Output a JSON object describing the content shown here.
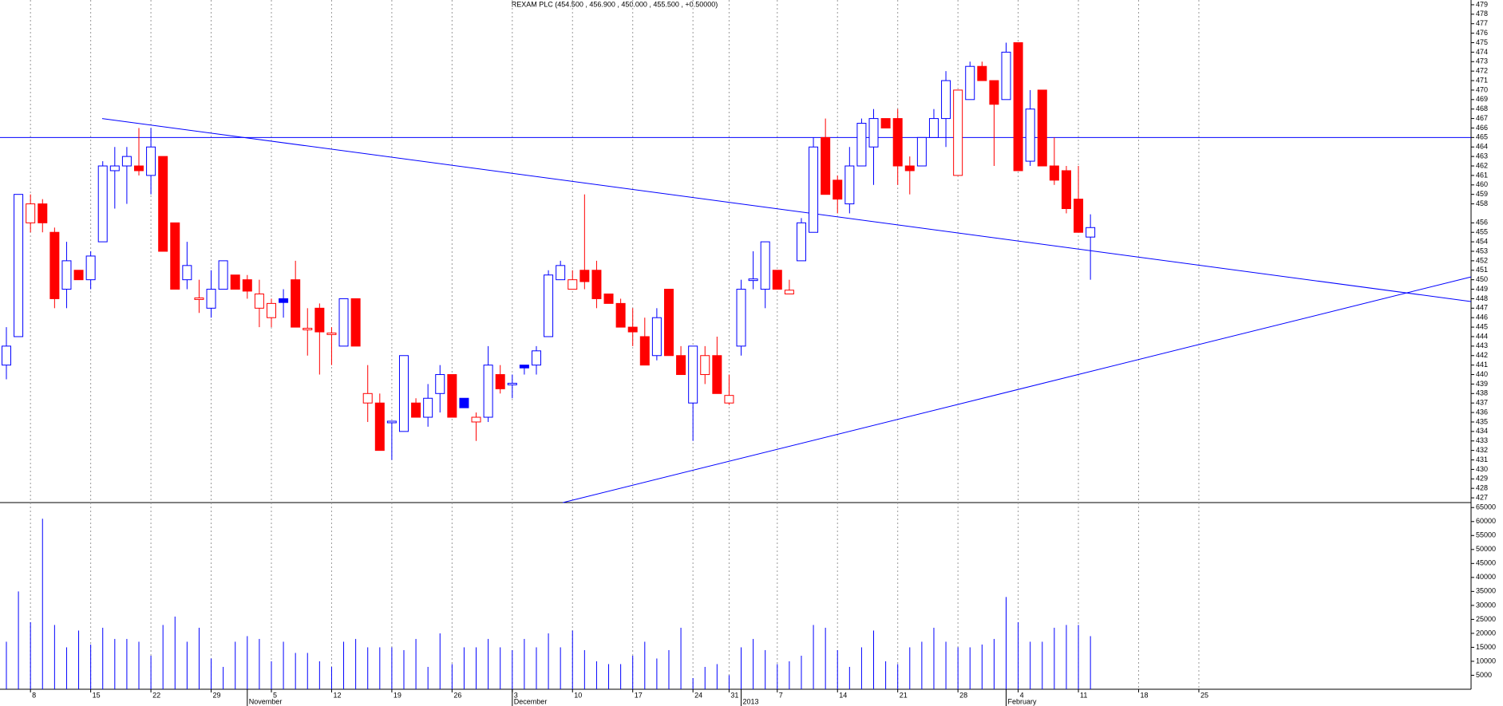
{
  "chart_data": {
    "type": "candlestick",
    "title": "REXAM PLC (454.500 , 456.900 , 450.000 , 455.500 , +0.50000)",
    "open": [
      441,
      444,
      456,
      458,
      455,
      449,
      451,
      450,
      454,
      461.5,
      462,
      462,
      461,
      463,
      456,
      450,
      448,
      447,
      449,
      450.5,
      450,
      447,
      446,
      448,
      450,
      444.8,
      447,
      444.3,
      443,
      448,
      437,
      437,
      435,
      434,
      437,
      435.5,
      438,
      440,
      437.5,
      435,
      435.5,
      440,
      439,
      441,
      441,
      444,
      450,
      449,
      451,
      451,
      448.5,
      447.5,
      445,
      444,
      442,
      449,
      442,
      437,
      440,
      442,
      437,
      443,
      450,
      449,
      451,
      448.5,
      452,
      455,
      465,
      460.5,
      458,
      462,
      464,
      467,
      467,
      462,
      462,
      465,
      467,
      461,
      469,
      472.5,
      471,
      469,
      475,
      462.5,
      470,
      462,
      461.5,
      458.5,
      454.5
    ],
    "high": [
      445,
      459,
      459,
      458.5,
      455.5,
      454,
      451,
      453,
      462.5,
      464,
      464,
      466,
      466,
      463,
      456,
      454,
      450,
      451,
      452,
      450.5,
      450.5,
      450,
      448,
      449,
      452,
      447,
      447.5,
      445,
      448,
      448,
      441,
      438,
      435,
      442,
      437.5,
      439,
      441,
      440,
      437.5,
      436,
      443,
      441,
      440,
      441,
      443,
      451,
      452,
      451,
      459,
      452,
      448.5,
      448,
      447,
      446,
      447,
      449,
      443,
      443,
      443,
      444,
      440,
      450,
      453,
      454,
      451,
      450,
      456.5,
      465,
      467,
      461,
      464,
      467,
      468,
      467,
      468,
      463,
      465,
      468,
      472,
      470,
      473,
      473,
      471,
      475,
      475,
      470,
      470,
      465,
      462,
      462,
      456.9
    ],
    "low": [
      439.5,
      444,
      455,
      455,
      447,
      447,
      450,
      449,
      454,
      457.5,
      458,
      461,
      459,
      453,
      449,
      449,
      446.5,
      446,
      449,
      449,
      448,
      445,
      445,
      446,
      445,
      442,
      440,
      441,
      443,
      443,
      435,
      432,
      431,
      434,
      435.5,
      434.5,
      436,
      435.5,
      436.5,
      433,
      435,
      438,
      437.5,
      440,
      440,
      444,
      450,
      449,
      449,
      447,
      447.5,
      445,
      443,
      441,
      441.5,
      442,
      440,
      433,
      439,
      438,
      436.8,
      442,
      449,
      447,
      449,
      448.5,
      452,
      455,
      459,
      457,
      457,
      462,
      460,
      466,
      460,
      459,
      462,
      465,
      464,
      461,
      469,
      471,
      462,
      469,
      461.5,
      462,
      462,
      460,
      457,
      455,
      450
    ],
    "close": [
      443,
      459,
      458,
      456,
      448,
      452,
      450,
      452.5,
      462,
      462,
      463,
      461.5,
      464,
      453,
      449,
      451.5,
      448,
      449,
      452,
      449,
      448.8,
      448.5,
      447.5,
      447.6,
      445,
      444.8,
      444.5,
      444.3,
      448,
      443,
      438,
      432,
      435,
      442,
      435.5,
      437.5,
      440,
      435.5,
      436.5,
      435.5,
      441,
      438.5,
      439,
      440.7,
      442.5,
      450.5,
      451.5,
      450,
      449.8,
      448,
      447.5,
      445,
      444.5,
      441,
      446,
      442,
      440,
      443,
      442,
      438,
      437.8,
      449,
      450,
      454,
      449,
      448.9,
      456,
      464,
      459,
      458.5,
      462,
      466.5,
      467,
      466,
      462,
      461.5,
      465,
      467,
      471,
      470,
      472.5,
      471,
      468.5,
      474,
      461.5,
      468,
      462,
      460.5,
      457.5,
      455,
      455.5
    ],
    "volume": [
      17000,
      35000,
      24000,
      61000,
      23000,
      15000,
      21000,
      16000,
      22000,
      18000,
      18000,
      17000,
      12000,
      23000,
      26000,
      17000,
      22000,
      11000,
      8000,
      17000,
      19000,
      18000,
      10000,
      17000,
      13000,
      13000,
      10000,
      8000,
      17000,
      18000,
      15000,
      15000,
      15000,
      14000,
      18000,
      8000,
      20000,
      9000,
      15000,
      15000,
      18000,
      15000,
      14000,
      18000,
      15000,
      20000,
      15000,
      21000,
      14000,
      10000,
      9000,
      9000,
      12000,
      17000,
      11000,
      14000,
      22000,
      4000,
      8000,
      9000,
      5000,
      15000,
      18000,
      14000,
      9000,
      10000,
      12000,
      23000,
      22000,
      14000,
      8000,
      15000,
      21000,
      10000,
      9000,
      15000,
      17000,
      22000,
      17000,
      15000,
      15000,
      16000,
      18000,
      33000,
      24000,
      17000,
      17000,
      22000,
      23000,
      23000,
      19000
    ],
    "up_color": "#0000ff",
    "down_color": "#ff0000",
    "volume_color": "#0000ff",
    "line_color": "#0000ff",
    "xlim": [
      -0.53,
      121.6
    ],
    "ylim": [
      426.5,
      479.5
    ],
    "yticks": [
      427,
      428,
      429,
      430,
      431,
      432,
      433,
      434,
      435,
      436,
      437,
      438,
      439,
      440,
      441,
      442,
      443,
      444,
      445,
      446,
      447,
      448,
      449,
      450,
      451,
      452,
      453,
      454,
      455,
      456,
      458,
      459,
      460,
      461,
      462,
      463,
      464,
      465,
      466,
      467,
      468,
      469,
      470,
      471,
      472,
      473,
      474,
      475,
      476,
      477,
      478,
      479
    ],
    "volume_ylim": [
      0,
      66500
    ],
    "volume_yticks": [
      5000,
      10000,
      15000,
      20000,
      25000,
      30000,
      35000,
      40000,
      45000,
      50000,
      55000,
      60000,
      65000
    ],
    "xticks": [
      {
        "value": 2,
        "label": "8"
      },
      {
        "value": 7,
        "label": "15"
      },
      {
        "value": 12,
        "label": "22"
      },
      {
        "value": 17,
        "label": "29"
      },
      {
        "value": 22,
        "label": "5"
      },
      {
        "value": 27,
        "label": "12"
      },
      {
        "value": 32,
        "label": "19"
      },
      {
        "value": 37,
        "label": "26"
      },
      {
        "value": 42,
        "label": "3"
      },
      {
        "value": 47,
        "label": "10"
      },
      {
        "value": 52,
        "label": "17"
      },
      {
        "value": 57,
        "label": "24"
      },
      {
        "value": 60,
        "label": "31"
      },
      {
        "value": 64,
        "label": "7"
      },
      {
        "value": 69,
        "label": "14"
      },
      {
        "value": 74,
        "label": "21"
      },
      {
        "value": 79,
        "label": "28"
      },
      {
        "value": 84,
        "label": "4"
      },
      {
        "value": 89,
        "label": "11"
      },
      {
        "value": 94,
        "label": "18"
      },
      {
        "value": 99,
        "label": "25"
      }
    ],
    "x_month_labels": [
      {
        "value": 20,
        "label": "November"
      },
      {
        "value": 42,
        "label": "December"
      },
      {
        "value": 61,
        "label": "2013"
      },
      {
        "value": 83,
        "label": "February"
      }
    ],
    "trend_lines": [
      {
        "x": [
          7.95,
          121.6
        ],
        "y": [
          467,
          447.7
        ]
      },
      {
        "x": [
          46.2,
          121.6
        ],
        "y": [
          426.5,
          450.3
        ]
      }
    ],
    "hlines": [
      465
    ],
    "grid": true
  }
}
